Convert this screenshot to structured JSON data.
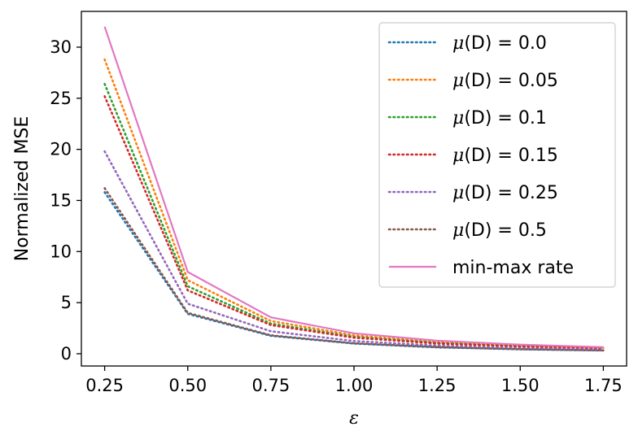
{
  "chart_data": {
    "type": "line",
    "xlabel": "ε",
    "ylabel": "Normalized MSE",
    "xlim": [
      0.18,
      1.82
    ],
    "ylim": [
      -1.2,
      33.5
    ],
    "xticks": [
      0.25,
      0.5,
      0.75,
      1.0,
      1.25,
      1.5,
      1.75
    ],
    "xtick_labels": [
      "0.25",
      "0.50",
      "0.75",
      "1.00",
      "1.25",
      "1.50",
      "1.75"
    ],
    "yticks": [
      0,
      5,
      10,
      15,
      20,
      25,
      30
    ],
    "ytick_labels": [
      "0",
      "5",
      "10",
      "15",
      "20",
      "25",
      "30"
    ],
    "grid": false,
    "legend_position": "top-right",
    "x": [
      0.25,
      0.5,
      0.75,
      1.0,
      1.25,
      1.5,
      1.75
    ],
    "series": [
      {
        "name": "μ(D) = 0.0",
        "color": "#1f77b4",
        "style": "dotted",
        "values": [
          15.8,
          3.9,
          1.75,
          1.0,
          0.62,
          0.43,
          0.32
        ]
      },
      {
        "name": "μ(D) = 0.05",
        "color": "#ff7f0e",
        "style": "dotted",
        "values": [
          28.8,
          7.2,
          3.2,
          1.8,
          1.15,
          0.8,
          0.58
        ]
      },
      {
        "name": "μ(D) = 0.1",
        "color": "#2ca02c",
        "style": "dotted",
        "values": [
          26.4,
          6.6,
          2.95,
          1.65,
          1.05,
          0.73,
          0.54
        ]
      },
      {
        "name": "μ(D) = 0.15",
        "color": "#d62728",
        "style": "dotted",
        "values": [
          25.2,
          6.2,
          2.8,
          1.57,
          1.0,
          0.7,
          0.51
        ]
      },
      {
        "name": "μ(D) = 0.25",
        "color": "#9467bd",
        "style": "dotted",
        "values": [
          19.8,
          4.9,
          2.2,
          1.24,
          0.79,
          0.55,
          0.4
        ]
      },
      {
        "name": "μ(D) = 0.5",
        "color": "#8c564b",
        "style": "dotted",
        "values": [
          16.2,
          4.0,
          1.8,
          1.02,
          0.65,
          0.45,
          0.33
        ]
      },
      {
        "name": "min-max rate",
        "color": "#e377c2",
        "style": "solid",
        "values": [
          32.0,
          8.0,
          3.56,
          2.0,
          1.28,
          0.89,
          0.65
        ]
      }
    ],
    "legend": [
      {
        "prefix": "μ",
        "suffix": "(D) = 0.0"
      },
      {
        "prefix": "μ",
        "suffix": "(D) = 0.05"
      },
      {
        "prefix": "μ",
        "suffix": "(D) = 0.1"
      },
      {
        "prefix": "μ",
        "suffix": "(D) = 0.15"
      },
      {
        "prefix": "μ",
        "suffix": "(D) = 0.25"
      },
      {
        "prefix": "μ",
        "suffix": "(D) = 0.5"
      },
      {
        "prefix": "",
        "suffix": "min-max rate"
      }
    ]
  }
}
